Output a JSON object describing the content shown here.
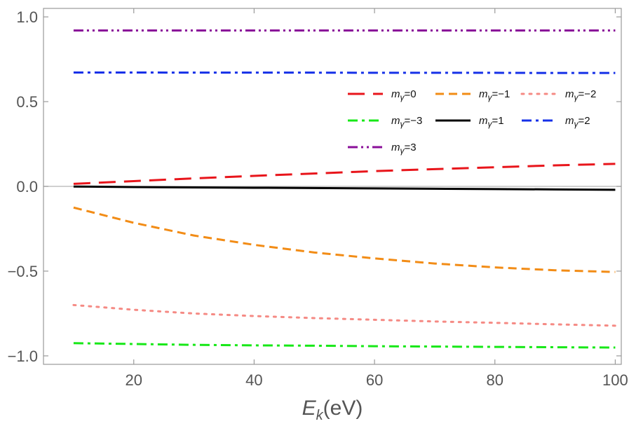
{
  "chart_data": {
    "type": "line",
    "title": "",
    "xlabel_main": "E",
    "xlabel_sub": "k",
    "xlabel_unit": "(eV)",
    "ylabel": "",
    "xlim": [
      5,
      101
    ],
    "ylim": [
      -1.05,
      1.05
    ],
    "xticks": [
      20,
      40,
      60,
      80,
      100
    ],
    "xtick_labels": [
      "20",
      "40",
      "60",
      "80",
      "100"
    ],
    "yticks": [
      -1.0,
      -0.5,
      0.0,
      0.5,
      1.0
    ],
    "ytick_labels": [
      "−1.0",
      "−0.5",
      "0.0",
      "0.5",
      "1.0"
    ],
    "legend_position": "top-right",
    "x": [
      10,
      20,
      30,
      40,
      50,
      60,
      70,
      80,
      90,
      100
    ],
    "series": [
      {
        "name": "mγ=0",
        "name_main": "m",
        "name_sub": "γ",
        "name_rest": "=0",
        "color": "#e8151b",
        "style": "long-dash",
        "values": [
          0.015,
          0.031,
          0.047,
          0.062,
          0.076,
          0.09,
          0.102,
          0.113,
          0.124,
          0.133
        ]
      },
      {
        "name": "mγ=−1",
        "name_main": "m",
        "name_sub": "γ",
        "name_rest": "=−1",
        "color": "#f28c16",
        "style": "dash",
        "values": [
          -0.125,
          -0.215,
          -0.29,
          -0.345,
          -0.39,
          -0.425,
          -0.455,
          -0.478,
          -0.495,
          -0.505
        ]
      },
      {
        "name": "mγ=−2",
        "name_main": "m",
        "name_sub": "γ",
        "name_rest": "=−2",
        "color": "#f58a84",
        "style": "dot",
        "values": [
          -0.7,
          -0.728,
          -0.75,
          -0.765,
          -0.777,
          -0.787,
          -0.797,
          -0.805,
          -0.814,
          -0.822
        ]
      },
      {
        "name": "mγ=−3",
        "name_main": "m",
        "name_sub": "γ",
        "name_rest": "=−3",
        "color": "#17e817",
        "style": "dash-dot",
        "values": [
          -0.925,
          -0.93,
          -0.935,
          -0.938,
          -0.94,
          -0.943,
          -0.945,
          -0.947,
          -0.949,
          -0.951
        ]
      },
      {
        "name": "mγ=1",
        "name_main": "m",
        "name_sub": "γ",
        "name_rest": "=1",
        "color": "#000000",
        "style": "solid",
        "values": [
          -0.001,
          -0.004,
          -0.006,
          -0.008,
          -0.01,
          -0.012,
          -0.014,
          -0.016,
          -0.018,
          -0.02
        ]
      },
      {
        "name": "mγ=2",
        "name_main": "m",
        "name_sub": "γ",
        "name_rest": "=2",
        "color": "#1530e8",
        "style": "dash-dot",
        "values": [
          0.672,
          0.672,
          0.671,
          0.671,
          0.671,
          0.67,
          0.67,
          0.67,
          0.669,
          0.669
        ]
      },
      {
        "name": "mγ=3",
        "name_main": "m",
        "name_sub": "γ",
        "name_rest": "=3",
        "color": "#8a0f99",
        "style": "dash-dot-dot",
        "values": [
          0.92,
          0.92,
          0.92,
          0.92,
          0.92,
          0.92,
          0.92,
          0.92,
          0.92,
          0.92
        ]
      }
    ]
  }
}
